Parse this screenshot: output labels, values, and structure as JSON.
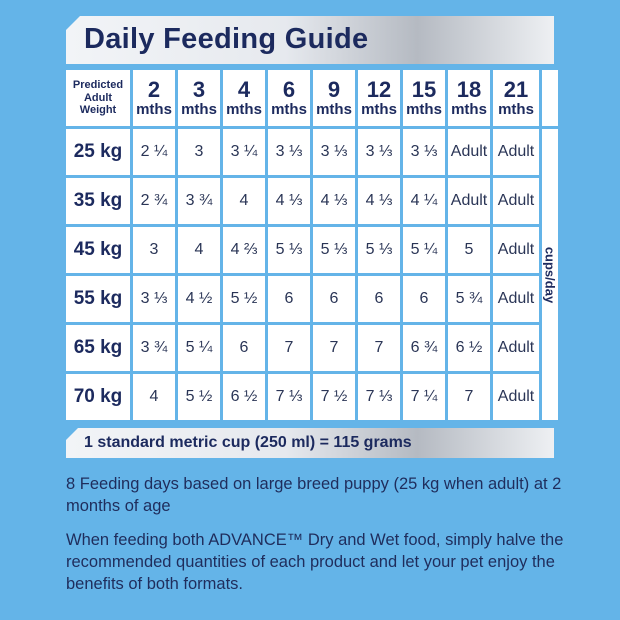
{
  "title": "Daily Feeding Guide",
  "corner_label": [
    "Predicted",
    "Adult",
    "Weight"
  ],
  "ages": [
    {
      "num": "2",
      "unit": "mths"
    },
    {
      "num": "3",
      "unit": "mths"
    },
    {
      "num": "4",
      "unit": "mths"
    },
    {
      "num": "6",
      "unit": "mths"
    },
    {
      "num": "9",
      "unit": "mths"
    },
    {
      "num": "12",
      "unit": "mths"
    },
    {
      "num": "15",
      "unit": "mths"
    },
    {
      "num": "18",
      "unit": "mths"
    },
    {
      "num": "21",
      "unit": "mths"
    }
  ],
  "rows": [
    {
      "weight": "25 kg",
      "values": [
        "2 ¼",
        "3",
        "3 ¼",
        "3 ⅓",
        "3 ⅓",
        "3 ⅓",
        "3 ⅓",
        "Adult",
        "Adult"
      ]
    },
    {
      "weight": "35 kg",
      "values": [
        "2 ¾",
        "3 ¾",
        "4",
        "4 ⅓",
        "4 ⅓",
        "4 ⅓",
        "4 ¼",
        "Adult",
        "Adult"
      ]
    },
    {
      "weight": "45 kg",
      "values": [
        "3",
        "4",
        "4 ⅔",
        "5 ⅓",
        "5 ⅓",
        "5 ⅓",
        "5 ¼",
        "5",
        "Adult"
      ]
    },
    {
      "weight": "55 kg",
      "values": [
        "3 ⅓",
        "4 ½",
        "5 ½",
        "6",
        "6",
        "6",
        "6",
        "5 ¾",
        "Adult"
      ]
    },
    {
      "weight": "65 kg",
      "values": [
        "3 ¾",
        "5 ¼",
        "6",
        "7",
        "7",
        "7",
        "6 ¾",
        "6 ½",
        "Adult"
      ]
    },
    {
      "weight": "70 kg",
      "values": [
        "4",
        "5 ½",
        "6 ½",
        "7 ⅓",
        "7 ½",
        "7 ⅓",
        "7 ¼",
        "7",
        "Adult"
      ]
    }
  ],
  "unit_label": "cups/day",
  "cup_note": "1 standard metric cup (250 ml) = 115 grams",
  "notes": [
    "8 Feeding days based on large breed puppy (25 kg when adult) at 2 months of age",
    "When feeding both ADVANCE™ Dry and Wet food, simply halve the recommended quantities of each product and let your pet enjoy the benefits of both formats."
  ]
}
